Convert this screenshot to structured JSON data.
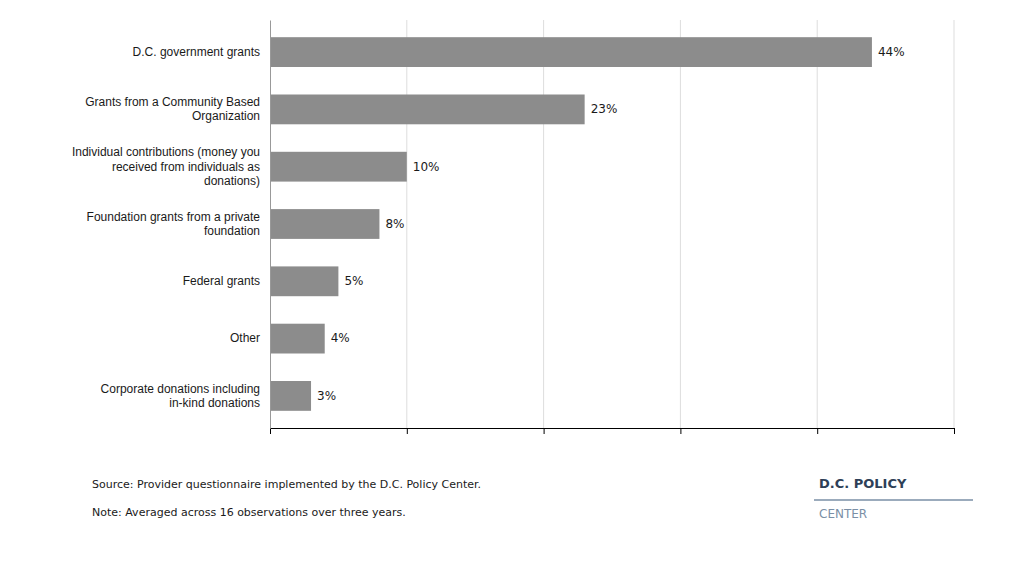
{
  "chart_data": {
    "type": "bar",
    "orientation": "horizontal",
    "categories": [
      "Corporate donations including\nin-kind donations",
      "Other",
      "Federal grants",
      "Foundation grants from a private\nfoundation",
      "Individual contributions (money you\nreceived from individuals as\ndonations)",
      "Grants from a Community Based\nOrganization",
      "D.C. government grants"
    ],
    "values": [
      3,
      4,
      5,
      8,
      10,
      23,
      44
    ],
    "value_labels": [
      "3%",
      "4%",
      "5%",
      "8%",
      "10%",
      "23%",
      "44%"
    ],
    "data_labels": true,
    "color": "#8c8c8c",
    "xlim": [
      0,
      50
    ],
    "xticks": [
      10,
      20,
      30,
      40,
      50
    ],
    "grid": true,
    "tick_labels": "y",
    "annotations": [
      "Source: Provider questionnaire implemented by the D.C. Policy Center.",
      "Note: Averaged across 16 observations over three years.",
      "D.C. POLICY",
      "CENTER"
    ]
  }
}
